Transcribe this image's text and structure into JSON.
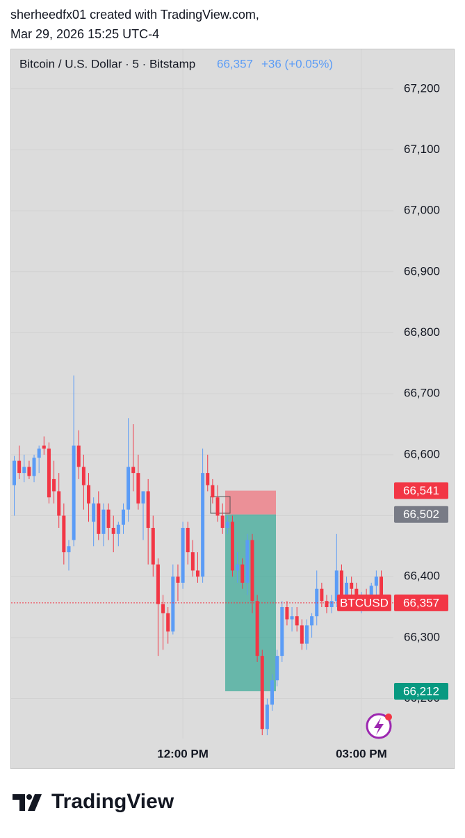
{
  "header": {
    "line1": "sherheedfx01 created with TradingView.com,",
    "line2": "Mar 29, 2026 15:25 UTC-4"
  },
  "chart_data": {
    "type": "candlestick",
    "title": "Bitcoin / U.S. Dollar · 5 · Bitstamp",
    "last": {
      "value": 66357,
      "label": "66,357"
    },
    "change": "+36 (+0.05%)",
    "symbol": "BTCUSD",
    "categories": [
      null,
      null,
      null,
      null,
      null,
      null,
      null,
      null,
      null,
      null,
      null,
      null,
      null,
      null,
      null,
      null,
      null,
      null,
      null,
      null,
      null,
      null,
      null,
      null,
      null,
      null,
      null,
      null,
      null,
      null,
      null,
      null,
      null,
      null,
      "12:00 PM",
      null,
      null,
      null,
      null,
      null,
      null,
      null,
      null,
      null,
      null,
      null,
      null,
      null,
      null,
      null,
      null,
      null,
      null,
      null,
      null,
      null,
      null,
      null,
      null,
      null,
      null,
      null,
      null,
      null,
      null,
      null,
      null,
      null,
      null,
      null,
      "03:00 PM",
      null,
      null,
      null,
      null
    ],
    "open": [
      66550,
      66590,
      66570,
      66580,
      66565,
      66595,
      66615,
      66610,
      66560,
      66540,
      66500,
      66440,
      66460,
      66615,
      66580,
      66550,
      66490,
      66520,
      66470,
      66510,
      66480,
      66470,
      66485,
      66510,
      66580,
      66570,
      66520,
      66540,
      66480,
      66420,
      66355,
      66340,
      66310,
      66400,
      66390,
      66480,
      66440,
      66410,
      66400,
      66570,
      66550,
      66530,
      66500,
      66480,
      66490,
      66410,
      66420,
      66390,
      66460,
      66360,
      66270,
      66150,
      66190,
      66230,
      66270,
      66350,
      66330,
      66335,
      66320,
      66290,
      66320,
      66335,
      66380,
      66360,
      66350,
      66360,
      66410,
      66370,
      66390,
      66380,
      66360,
      66370,
      66360,
      66385,
      66400
    ],
    "high": [
      66598,
      66615,
      66600,
      66590,
      66600,
      66615,
      66630,
      66620,
      66590,
      66570,
      66520,
      66460,
      66730,
      66640,
      66600,
      66570,
      66530,
      66540,
      66520,
      66520,
      66500,
      66490,
      66520,
      66660,
      66650,
      66600,
      66540,
      66560,
      66500,
      66430,
      66370,
      66350,
      66420,
      66420,
      66490,
      66490,
      66460,
      66440,
      66610,
      66600,
      66560,
      66550,
      66520,
      66500,
      66500,
      66440,
      66430,
      66470,
      66470,
      66370,
      66280,
      66200,
      66240,
      66280,
      66360,
      66360,
      66350,
      66350,
      66330,
      66330,
      66340,
      66410,
      66390,
      66370,
      66370,
      66470,
      66420,
      66400,
      66400,
      66390,
      66375,
      66380,
      66390,
      66410,
      66410
    ],
    "low": [
      66500,
      66560,
      66555,
      66560,
      66555,
      66570,
      66600,
      66520,
      66520,
      66480,
      66420,
      66410,
      66450,
      66560,
      66510,
      66490,
      66450,
      66460,
      66450,
      66460,
      66440,
      66450,
      66470,
      66490,
      66540,
      66510,
      66460,
      66420,
      66400,
      66270,
      66280,
      66290,
      66305,
      66360,
      66380,
      66420,
      66400,
      66390,
      66390,
      66540,
      66520,
      66490,
      66470,
      66470,
      66400,
      66390,
      66380,
      66370,
      66340,
      66260,
      66140,
      66140,
      66180,
      66220,
      66260,
      66320,
      66310,
      66310,
      66280,
      66280,
      66300,
      66320,
      66350,
      66340,
      66340,
      66350,
      66360,
      66360,
      66370,
      66350,
      66340,
      66350,
      66350,
      66370,
      66350
    ],
    "close": [
      66590,
      66570,
      66580,
      66565,
      66595,
      66610,
      66610,
      66530,
      66540,
      66500,
      66440,
      66450,
      66615,
      66580,
      66550,
      66520,
      66520,
      66470,
      66510,
      66480,
      66470,
      66485,
      66510,
      66580,
      66570,
      66520,
      66540,
      66480,
      66420,
      66355,
      66340,
      66310,
      66400,
      66390,
      66480,
      66440,
      66410,
      66400,
      66570,
      66550,
      66530,
      66500,
      66480,
      66490,
      66410,
      66420,
      66390,
      66460,
      66360,
      66270,
      66150,
      66190,
      66230,
      66270,
      66350,
      66330,
      66335,
      66320,
      66290,
      66320,
      66335,
      66380,
      66360,
      66350,
      66360,
      66410,
      66370,
      66390,
      66380,
      66360,
      66370,
      66360,
      66385,
      66400,
      66357
    ],
    "up_color": "#5b9cf6",
    "down_color": "#f23645",
    "ylim": [
      66131,
      67226
    ],
    "yticks": [
      {
        "value": 66200,
        "label": "66,200"
      },
      {
        "value": 66300,
        "label": "66,300"
      },
      {
        "value": 66400,
        "label": "66,400"
      },
      {
        "value": 66500,
        "label": "66,500"
      },
      {
        "value": 66600,
        "label": "66,600"
      },
      {
        "value": 66700,
        "label": "66,700"
      },
      {
        "value": 66800,
        "label": "66,800"
      },
      {
        "value": 66900,
        "label": "66,900"
      },
      {
        "value": 67000,
        "label": "67,000"
      },
      {
        "value": 67100,
        "label": "67,100"
      },
      {
        "value": 67200,
        "label": "67,200"
      }
    ],
    "grid": true,
    "position": {
      "stop": {
        "value": 66541,
        "label": "66,541"
      },
      "entry": {
        "value": 66502,
        "label": "66,502"
      },
      "target": {
        "value": 66212,
        "label": "66,212"
      }
    }
  },
  "footer": {
    "brand": "TradingView"
  }
}
